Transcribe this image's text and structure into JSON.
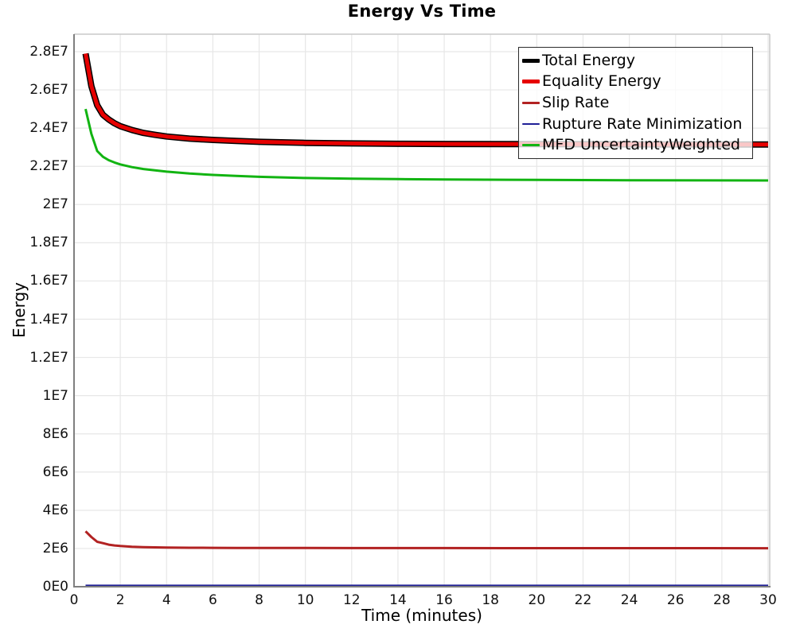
{
  "chart_data": {
    "type": "line",
    "title": "Energy Vs Time",
    "xlabel": "Time (minutes)",
    "ylabel": "Energy",
    "xlim": [
      0,
      30.1
    ],
    "ylim": [
      0,
      28900000
    ],
    "grid": true,
    "legend_position": "upper right",
    "x": [
      0.5,
      0.75,
      1,
      1.25,
      1.5,
      1.75,
      2,
      2.5,
      3,
      3.5,
      4,
      5,
      6,
      7,
      8,
      10,
      12,
      14,
      16,
      20,
      24,
      30
    ],
    "series": [
      {
        "name": "Total Energy",
        "color": "#000000",
        "line_width": 8,
        "legend_line_width": 5,
        "values": [
          27900000,
          26200000,
          25200000,
          24700000,
          24450000,
          24250000,
          24100000,
          23900000,
          23750000,
          23650000,
          23560000,
          23450000,
          23380000,
          23330000,
          23280000,
          23230000,
          23200000,
          23180000,
          23170000,
          23160000,
          23150000,
          23140000
        ]
      },
      {
        "name": "Equality Energy",
        "color": "#e60000",
        "line_width": 5,
        "legend_line_width": 5,
        "values": [
          27900000,
          26200000,
          25200000,
          24700000,
          24450000,
          24250000,
          24100000,
          23900000,
          23750000,
          23650000,
          23560000,
          23450000,
          23380000,
          23330000,
          23280000,
          23230000,
          23200000,
          23180000,
          23170000,
          23160000,
          23150000,
          23140000
        ]
      },
      {
        "name": "Slip Rate",
        "color": "#b22222",
        "line_width": 3,
        "legend_line_width": 2.5,
        "values": [
          2900000,
          2600000,
          2350000,
          2280000,
          2200000,
          2160000,
          2130000,
          2090000,
          2070000,
          2060000,
          2050000,
          2040000,
          2035000,
          2032000,
          2030000,
          2025000,
          2022000,
          2020000,
          2020000,
          2018000,
          2016000,
          2015000
        ]
      },
      {
        "name": "Rupture Rate Minimization",
        "color": "#1e1e96",
        "line_width": 2.5,
        "legend_line_width": 2.5,
        "values": [
          60000,
          60000,
          60000,
          60000,
          60000,
          60000,
          60000,
          60000,
          60000,
          60000,
          60000,
          60000,
          60000,
          60000,
          60000,
          60000,
          60000,
          60000,
          60000,
          60000,
          60000,
          60000
        ]
      },
      {
        "name": "MFD UncertaintyWeighted",
        "color": "#12b412",
        "line_width": 3,
        "legend_line_width": 2.5,
        "values": [
          25000000,
          23700000,
          22800000,
          22500000,
          22320000,
          22200000,
          22100000,
          21960000,
          21860000,
          21790000,
          21720000,
          21620000,
          21550000,
          21500000,
          21450000,
          21390000,
          21350000,
          21330000,
          21310000,
          21290000,
          21270000,
          21260000
        ]
      }
    ],
    "x_ticks": {
      "values": [
        0,
        2,
        4,
        6,
        8,
        10,
        12,
        14,
        16,
        18,
        20,
        22,
        24,
        26,
        28,
        30
      ],
      "labels": [
        "0",
        "2",
        "4",
        "6",
        "8",
        "10",
        "12",
        "14",
        "16",
        "18",
        "20",
        "22",
        "24",
        "26",
        "28",
        "30"
      ]
    },
    "y_ticks": {
      "values": [
        0,
        2000000,
        4000000,
        6000000,
        8000000,
        10000000,
        12000000,
        14000000,
        16000000,
        18000000,
        20000000,
        22000000,
        24000000,
        26000000,
        28000000
      ],
      "labels": [
        "0E0",
        "2E6",
        "4E6",
        "6E6",
        "8E6",
        "1E7",
        "1.2E7",
        "1.4E7",
        "1.6E7",
        "1.8E7",
        "2E7",
        "2.2E7",
        "2.4E7",
        "2.6E7",
        "2.8E7"
      ]
    },
    "colors": {
      "grid": "#e7e7e7",
      "spine_dark": "#7f7f7f",
      "spine_light": "#c9c9c9",
      "tick_text": "#111111"
    }
  }
}
